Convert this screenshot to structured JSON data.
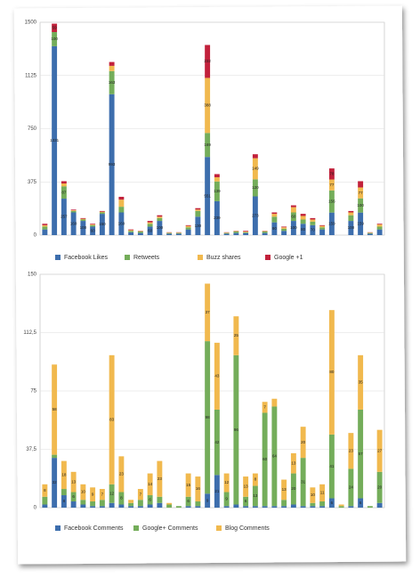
{
  "chart_data": [
    {
      "type": "stacked_bar",
      "ylim": [
        0,
        1500
      ],
      "yticks": [
        0,
        375,
        750,
        1125,
        1500
      ],
      "grid": true,
      "data_labels": true,
      "legend": "bottom",
      "series": [
        {
          "name": "Facebook Likes",
          "color": "#3d6ead",
          "values": [
            40,
            1331,
            257,
            160,
            100,
            60,
            150,
            993,
            160,
            20,
            15,
            60,
            100,
            10,
            10,
            40,
            130,
            551,
            239,
            10,
            15,
            15,
            273,
            15,
            90,
            30,
            100,
            80,
            70,
            40,
            159,
            0,
            100,
            159,
            10,
            40
          ]
        },
        {
          "name": "Retweets",
          "color": "#74ad5a",
          "values": [
            20,
            100,
            87,
            10,
            10,
            10,
            10,
            163,
            40,
            10,
            10,
            20,
            20,
            5,
            5,
            15,
            40,
            169,
            139,
            5,
            10,
            5,
            120,
            10,
            40,
            15,
            60,
            30,
            25,
            15,
            156,
            0,
            40,
            100,
            5,
            20
          ]
        },
        {
          "name": "Buzz shares",
          "color": "#f1b94e",
          "values": [
            10,
            0,
            20,
            5,
            5,
            5,
            5,
            37,
            50,
            5,
            3,
            10,
            10,
            3,
            3,
            10,
            10,
            388,
            30,
            3,
            3,
            5,
            149,
            3,
            20,
            10,
            37,
            25,
            15,
            10,
            77,
            0,
            20,
            77,
            3,
            15
          ]
        },
        {
          "name": "Google +1",
          "color": "#c2213b",
          "values": [
            10,
            59,
            16,
            5,
            5,
            5,
            5,
            27,
            20,
            5,
            2,
            10,
            10,
            2,
            2,
            5,
            10,
            232,
            22,
            2,
            2,
            5,
            28,
            2,
            10,
            5,
            13,
            15,
            10,
            5,
            78,
            0,
            10,
            44,
            2,
            5
          ]
        }
      ]
    },
    {
      "type": "stacked_bar",
      "ylim": [
        0,
        150
      ],
      "yticks": [
        0,
        {
          "value": 37.5,
          "label": "37,5"
        },
        75,
        {
          "value": 112.5,
          "label": "112,5"
        },
        150
      ],
      "grid": true,
      "data_labels": true,
      "legend": "bottom",
      "series": [
        {
          "name": "Facebook Comments",
          "color": "#3d6ead",
          "values": [
            2,
            32,
            8,
            4,
            2,
            1,
            1,
            3,
            2,
            1,
            1,
            2,
            3,
            0,
            0,
            1,
            1,
            9,
            21,
            1,
            2,
            1,
            1,
            1,
            1,
            1,
            2,
            1,
            1,
            1,
            6,
            0,
            1,
            6,
            0,
            3
          ]
        },
        {
          "name": "Google+ Comments",
          "color": "#74ad5a",
          "values": [
            5,
            2,
            4,
            6,
            3,
            3,
            4,
            12,
            8,
            2,
            4,
            6,
            4,
            2,
            1,
            6,
            3,
            98,
            42,
            9,
            96,
            6,
            13,
            60,
            64,
            4,
            20,
            31,
            2,
            3,
            41,
            1,
            24,
            57,
            1,
            20
          ]
        },
        {
          "name": "Blog Comments",
          "color": "#f1b94e",
          "values": [
            8,
            58,
            18,
            13,
            10,
            9,
            7,
            83,
            23,
            2,
            7,
            14,
            23,
            1,
            0,
            15,
            16,
            37,
            43,
            12,
            25,
            13,
            8,
            7,
            5,
            13,
            13,
            20,
            10,
            11,
            80,
            1,
            23,
            35,
            0,
            27
          ]
        }
      ]
    }
  ]
}
